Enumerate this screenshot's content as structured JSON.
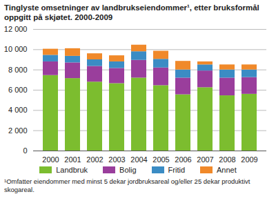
{
  "chart_data": {
    "type": "bar",
    "title": "Tinglyste omsetninger av landbrukseiendommer¹, etter bruksformål oppgitt på skjøtet. 2000-2009",
    "footnote": "¹Omfatter eiendommer med minst 5 dekar jordbruksareal og/eller 25 dekar produktivt skogareal.",
    "categories": [
      "2000",
      "2001",
      "2002",
      "2003",
      "2004",
      "2005",
      "2006",
      "2007",
      "2008",
      "2009"
    ],
    "stacked": true,
    "grid": true,
    "legend": "bottom",
    "series": [
      {
        "name": "Landbruk",
        "color": "#7cbd2f",
        "values": [
          7450,
          7150,
          6800,
          6650,
          7200,
          6450,
          5550,
          6250,
          5450,
          5600
        ]
      },
      {
        "name": "Bolig",
        "color": "#9a3e9c",
        "values": [
          1350,
          1550,
          1550,
          1500,
          1750,
          1750,
          1650,
          1650,
          1750,
          1650
        ]
      },
      {
        "name": "Fritid",
        "color": "#3b8cc4",
        "values": [
          650,
          650,
          650,
          650,
          850,
          850,
          800,
          600,
          800,
          750
        ]
      },
      {
        "name": "Annet",
        "color": "#f0892a",
        "values": [
          600,
          750,
          600,
          600,
          650,
          800,
          850,
          300,
          500,
          500
        ]
      }
    ],
    "ylim": [
      0,
      12000
    ],
    "yticks": [
      0,
      {
        "value": 2000,
        "label": "2 000"
      },
      {
        "value": 4000,
        "label": "4 000"
      },
      {
        "value": 6000,
        "label": "6 000"
      },
      {
        "value": 8000,
        "label": "8 000"
      },
      {
        "value": 10000,
        "label": "10 000"
      },
      {
        "value": 12000,
        "label": "12 000"
      }
    ]
  }
}
